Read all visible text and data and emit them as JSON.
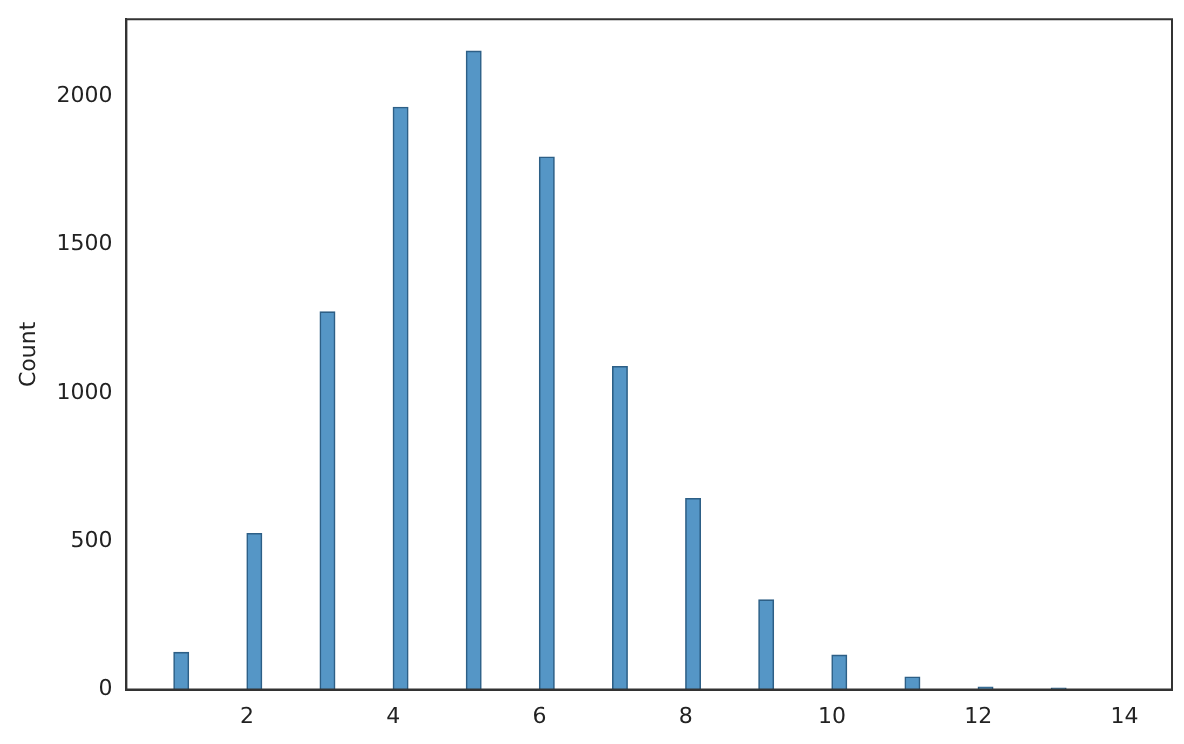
{
  "chart_data": {
    "type": "histogram",
    "ylabel": "Count",
    "color": "#5596c6",
    "bins": [
      1,
      1.2,
      1.4,
      1.6,
      1.8,
      2,
      2.2,
      2.4,
      2.6,
      2.8,
      3,
      3.2,
      3.4,
      3.6,
      3.8,
      4,
      4.2,
      4.4,
      4.6,
      4.8,
      5,
      5.2,
      5.4,
      5.6,
      5.8,
      6,
      6.2,
      6.4,
      6.6,
      6.8,
      7,
      7.2,
      7.4,
      7.6,
      7.8,
      8,
      8.2,
      8.4,
      8.6,
      8.8,
      9,
      9.2,
      9.4,
      9.6,
      9.8,
      10,
      10.2,
      10.4,
      10.6,
      10.8,
      11,
      11.2,
      11.4,
      11.6,
      11.8,
      12,
      12.2,
      12.4,
      12.6,
      12.8,
      13,
      13.2,
      13.4,
      13.6,
      13.8,
      14
    ],
    "values": [
      125,
      0,
      0,
      0,
      0,
      526,
      0,
      0,
      0,
      0,
      1273,
      0,
      0,
      0,
      0,
      1963,
      0,
      0,
      0,
      0,
      2152,
      0,
      0,
      0,
      0,
      1795,
      0,
      0,
      0,
      0,
      1089,
      0,
      0,
      0,
      0,
      644,
      0,
      0,
      0,
      0,
      302,
      0,
      0,
      0,
      0,
      116,
      0,
      0,
      0,
      0,
      42,
      0,
      0,
      0,
      0,
      8,
      0,
      0,
      0,
      0,
      5,
      0,
      0,
      0,
      0
    ],
    "xlim": [
      0.35,
      14.65
    ],
    "xticks": [
      2,
      4,
      6,
      8,
      10,
      12,
      14
    ],
    "ylim": [
      0,
      2260
    ],
    "yticks": [
      0,
      500,
      1000,
      1500,
      2000
    ],
    "grid": false
  }
}
